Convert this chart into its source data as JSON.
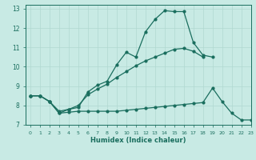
{
  "xlabel": "Humidex (Indice chaleur)",
  "xlim": [
    -0.5,
    23
  ],
  "ylim": [
    7,
    13.2
  ],
  "yticks": [
    7,
    8,
    9,
    10,
    11,
    12,
    13
  ],
  "xticks": [
    0,
    1,
    2,
    3,
    4,
    5,
    6,
    7,
    8,
    9,
    10,
    11,
    12,
    13,
    14,
    15,
    16,
    17,
    18,
    19,
    20,
    21,
    22,
    23
  ],
  "bg_color": "#c8eae4",
  "grid_color_major": "#b0d8d0",
  "grid_color_minor": "#b0d8d0",
  "line_color": "#1a6e5e",
  "series": [
    {
      "x": [
        0,
        1,
        2,
        3,
        4,
        5,
        6,
        7,
        8,
        9,
        10,
        11,
        12,
        13,
        14,
        15,
        16,
        17,
        18,
        19
      ],
      "y": [
        8.5,
        8.5,
        8.2,
        7.6,
        7.8,
        7.9,
        8.7,
        9.05,
        9.25,
        10.1,
        10.75,
        10.5,
        11.8,
        12.45,
        12.9,
        12.85,
        12.85,
        11.25,
        10.6,
        10.5
      ]
    },
    {
      "x": [
        0,
        1,
        2,
        3,
        4,
        5,
        6,
        7,
        8,
        9,
        10,
        11,
        12,
        13,
        14,
        15,
        16,
        17,
        18
      ],
      "y": [
        8.5,
        8.5,
        8.2,
        7.7,
        7.8,
        8.0,
        8.55,
        8.85,
        9.1,
        9.45,
        9.75,
        10.05,
        10.3,
        10.5,
        10.7,
        10.9,
        10.95,
        10.8,
        10.5
      ]
    },
    {
      "x": [
        0,
        1,
        2,
        3,
        4,
        5,
        6,
        7,
        8,
        9,
        10,
        11,
        12,
        13,
        14,
        15,
        16,
        17,
        18,
        19,
        20,
        21,
        22,
        23
      ],
      "y": [
        8.5,
        8.5,
        8.2,
        7.6,
        7.65,
        7.7,
        7.7,
        7.7,
        7.7,
        7.7,
        7.75,
        7.8,
        7.85,
        7.9,
        7.95,
        8.0,
        8.05,
        8.1,
        8.15,
        8.9,
        8.2,
        7.6,
        7.25,
        7.25
      ]
    }
  ]
}
